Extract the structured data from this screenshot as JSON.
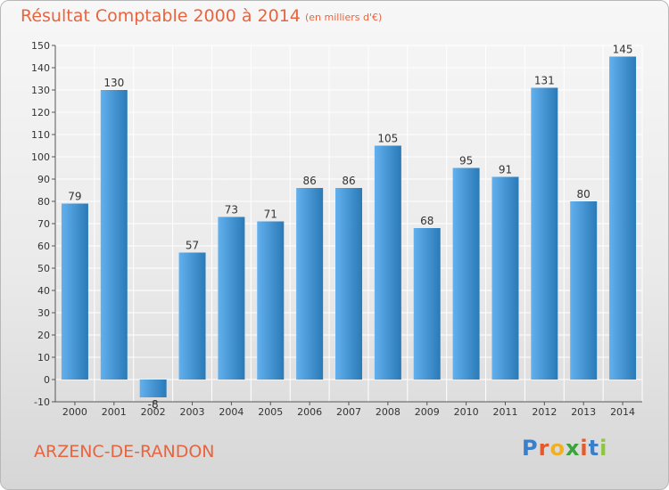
{
  "header": {
    "title": "Résultat Comptable 2000 à 2014",
    "subtitle": "(en milliers d'€)"
  },
  "footer": {
    "commune": "ARZENC-DE-RANDON",
    "logo_letters": [
      "P",
      "r",
      "o",
      "x",
      "i",
      "t",
      "i"
    ],
    "logo_colors": [
      "#3a7fcb",
      "#e55a2b",
      "#f2b020",
      "#3aa33a",
      "#e55a2b",
      "#3a7fcb",
      "#8dc63f"
    ]
  },
  "colors": {
    "title": "#e8643e",
    "bar_light": "#62b0ee",
    "bar_dark": "#2b7ab8",
    "grid": "#ffffff",
    "axis": "#555555"
  },
  "chart_data": {
    "type": "bar",
    "categories": [
      "2000",
      "2001",
      "2002",
      "2003",
      "2004",
      "2005",
      "2006",
      "2007",
      "2008",
      "2009",
      "2010",
      "2011",
      "2012",
      "2013",
      "2014"
    ],
    "values": [
      79,
      130,
      -8,
      57,
      73,
      71,
      86,
      86,
      105,
      68,
      95,
      91,
      131,
      80,
      145
    ],
    "ylim": [
      -10,
      150
    ],
    "yticks": [
      -10,
      0,
      10,
      20,
      30,
      40,
      50,
      60,
      70,
      80,
      90,
      100,
      110,
      120,
      130,
      140,
      150
    ],
    "grid": true,
    "xlabel": "",
    "ylabel": ""
  }
}
